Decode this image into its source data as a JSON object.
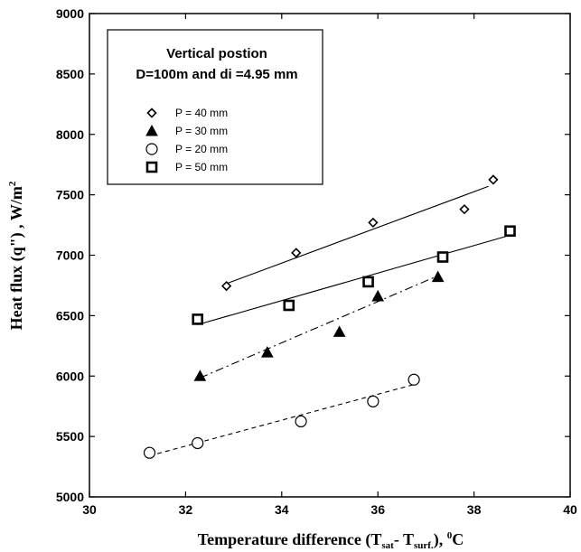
{
  "chart_data": {
    "type": "scatter",
    "xlabel_main": "Temperature difference (T",
    "xlabel_sub1": "sat",
    "xlabel_mid": "- T",
    "xlabel_sub2": "surf.",
    "xlabel_end": "), ",
    "xlabel_sup": "0",
    "xlabel_unit": "C",
    "ylabel_main": "Heat flux  (q\") , W/m",
    "ylabel_sup": "2",
    "xlim": [
      30,
      40
    ],
    "ylim": [
      5000,
      9000
    ],
    "xticks": [
      30,
      32,
      34,
      36,
      38,
      40
    ],
    "yticks": [
      5000,
      5500,
      6000,
      6500,
      7000,
      7500,
      8000,
      8500,
      9000
    ],
    "legend_title_1": "Vertical postion",
    "legend_title_2": "D=100m and di =4.95 mm",
    "series": [
      {
        "name": "P = 40 mm",
        "marker": "diamond",
        "line_style": "solid",
        "x": [
          32.85,
          34.3,
          35.9,
          37.8,
          38.4
        ],
        "y": [
          6745,
          7020,
          7270,
          7380,
          7625
        ],
        "fit": [
          [
            32.85,
            6765
          ],
          [
            38.3,
            7570
          ]
        ]
      },
      {
        "name": "P = 30 mm",
        "marker": "triangle",
        "line_style": "dashdot",
        "x": [
          32.3,
          33.7,
          35.2,
          36.0,
          37.25
        ],
        "y": [
          6000,
          6195,
          6365,
          6660,
          6820
        ],
        "fit": [
          [
            32.3,
            5985
          ],
          [
            37.25,
            6830
          ]
        ]
      },
      {
        "name": "P = 20 mm",
        "marker": "circle",
        "line_style": "dashed",
        "x": [
          31.25,
          32.25,
          34.4,
          35.9,
          36.75
        ],
        "y": [
          5365,
          5445,
          5625,
          5790,
          5970
        ],
        "fit": [
          [
            31.25,
            5340
          ],
          [
            36.75,
            5930
          ]
        ]
      },
      {
        "name": "P = 50 mm",
        "marker": "square",
        "line_style": "solid",
        "x": [
          32.25,
          34.15,
          35.8,
          37.35,
          38.75
        ],
        "y": [
          6470,
          6585,
          6780,
          6985,
          7200
        ],
        "fit": [
          [
            32.25,
            6425
          ],
          [
            38.7,
            7160
          ]
        ]
      }
    ]
  }
}
